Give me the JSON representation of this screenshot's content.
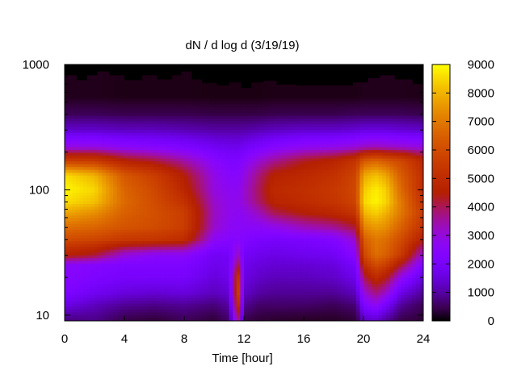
{
  "chart_data": {
    "type": "heatmap",
    "title": "dN / d log d (3/19/19)",
    "xlabel": "Time [hour]",
    "ylabel": "",
    "x_ticks": [
      "0",
      "4",
      "8",
      "12",
      "16",
      "20",
      "24"
    ],
    "x_tick_values": [
      0,
      4,
      8,
      12,
      16,
      20,
      24
    ],
    "y_ticks": [
      "10",
      "100",
      "1000"
    ],
    "y_tick_values": [
      10,
      100,
      1000
    ],
    "y_scale": "log",
    "xlim": [
      0,
      24
    ],
    "ylim": [
      9,
      1000
    ],
    "colorbar": {
      "ticks": [
        "0",
        "1000",
        "2000",
        "3000",
        "4000",
        "5000",
        "6000",
        "7000",
        "8000",
        "9000"
      ],
      "tick_values": [
        0,
        1000,
        2000,
        3000,
        4000,
        5000,
        6000,
        7000,
        8000,
        9000
      ],
      "range": [
        0,
        9000
      ],
      "palette": "black-blue-purple-red-orange-yellow"
    },
    "x_hours": [
      0,
      2,
      4,
      6,
      8,
      10,
      11,
      11.6,
      12,
      13,
      14,
      16,
      18,
      19.5,
      20,
      20.8,
      21.5,
      22.5,
      24
    ],
    "y_diam": [
      9,
      12,
      15,
      20,
      25,
      30,
      40,
      50,
      65,
      80,
      100,
      130,
      170,
      220,
      300,
      400,
      550
    ],
    "z": [
      [
        700,
        800,
        400,
        300,
        500,
        300,
        600,
        3800,
        400,
        300,
        250,
        200,
        200,
        300,
        1200,
        1300,
        900,
        400,
        300
      ],
      [
        1600,
        1200,
        900,
        800,
        900,
        700,
        1000,
        5200,
        900,
        600,
        600,
        600,
        500,
        700,
        2200,
        2800,
        2000,
        900,
        500
      ],
      [
        2200,
        1800,
        1500,
        1400,
        1500,
        1200,
        1400,
        5800,
        1300,
        1000,
        900,
        900,
        900,
        1200,
        3000,
        3800,
        3200,
        1600,
        900
      ],
      [
        2500,
        2200,
        2000,
        2000,
        2000,
        1500,
        1700,
        5400,
        1600,
        1300,
        1200,
        1200,
        1300,
        1700,
        4000,
        5000,
        4500,
        2800,
        1500
      ],
      [
        2600,
        2400,
        2200,
        2200,
        2200,
        1700,
        1800,
        4200,
        1700,
        1500,
        1400,
        1400,
        1500,
        2000,
        5000,
        6000,
        5600,
        4200,
        2200
      ],
      [
        4600,
        4200,
        3000,
        2600,
        2600,
        1800,
        1900,
        3300,
        1900,
        1700,
        1600,
        1700,
        1800,
        2500,
        5800,
        6800,
        6500,
        5500,
        3000
      ],
      [
        6000,
        5800,
        5400,
        5300,
        5000,
        2700,
        2400,
        2500,
        2300,
        2100,
        2000,
        2100,
        2300,
        3200,
        6400,
        7000,
        6800,
        6000,
        4500
      ],
      [
        6800,
        6600,
        6200,
        6000,
        5600,
        3200,
        2700,
        2600,
        2600,
        2600,
        2800,
        3300,
        3600,
        4200,
        7200,
        7600,
        7400,
        6500,
        5200
      ],
      [
        7800,
        7400,
        6500,
        6100,
        5600,
        3300,
        2800,
        2700,
        2800,
        3300,
        4000,
        4500,
        4800,
        5300,
        8000,
        8400,
        8000,
        7000,
        5500
      ],
      [
        8600,
        8200,
        6700,
        6000,
        5200,
        3200,
        2800,
        2800,
        3100,
        3900,
        4700,
        5000,
        5300,
        5800,
        8500,
        8900,
        8500,
        7000,
        5200
      ],
      [
        8900,
        8500,
        6600,
        5900,
        4800,
        3000,
        2700,
        2700,
        3100,
        4000,
        4900,
        5100,
        5400,
        5900,
        8300,
        8800,
        8400,
        6700,
        5000
      ],
      [
        8600,
        8000,
        6300,
        5600,
        4500,
        2900,
        2500,
        2500,
        2900,
        3800,
        4600,
        4900,
        5200,
        5800,
        7800,
        8200,
        7800,
        6400,
        5100
      ],
      [
        5600,
        5500,
        4600,
        4200,
        3500,
        2500,
        2200,
        2200,
        2500,
        3100,
        3600,
        4300,
        4700,
        5300,
        6300,
        6600,
        6300,
        5900,
        4800
      ],
      [
        2900,
        2900,
        2600,
        2400,
        2200,
        1800,
        1700,
        1700,
        1800,
        2100,
        2400,
        2700,
        2800,
        3000,
        3200,
        3300,
        3200,
        3100,
        2900
      ],
      [
        1300,
        1300,
        1200,
        1200,
        1100,
        1000,
        1000,
        1000,
        1000,
        1100,
        1200,
        1300,
        1300,
        1400,
        1500,
        1500,
        1500,
        1400,
        1300
      ],
      [
        500,
        500,
        450,
        450,
        450,
        400,
        400,
        400,
        400,
        400,
        450,
        450,
        450,
        500,
        500,
        500,
        500,
        500,
        450
      ],
      [
        150,
        150,
        120,
        120,
        120,
        100,
        100,
        100,
        100,
        100,
        120,
        120,
        120,
        120,
        150,
        150,
        150,
        150,
        120
      ]
    ],
    "upper_boundary_x": [
      0,
      0.8,
      1.5,
      2.2,
      3,
      4,
      5.2,
      6.2,
      7.2,
      7.8,
      8.5,
      9.2,
      10.2,
      11,
      11.8,
      12.5,
      13.3,
      14.2,
      15.5,
      17,
      18.4,
      19.3,
      20.3,
      21.1,
      22.1,
      23.3,
      24
    ],
    "upper_boundary_y": [
      820,
      750,
      820,
      880,
      820,
      750,
      820,
      760,
      820,
      880,
      760,
      710,
      680,
      720,
      650,
      720,
      740,
      690,
      680,
      680,
      680,
      720,
      780,
      820,
      760,
      700,
      690
    ]
  }
}
